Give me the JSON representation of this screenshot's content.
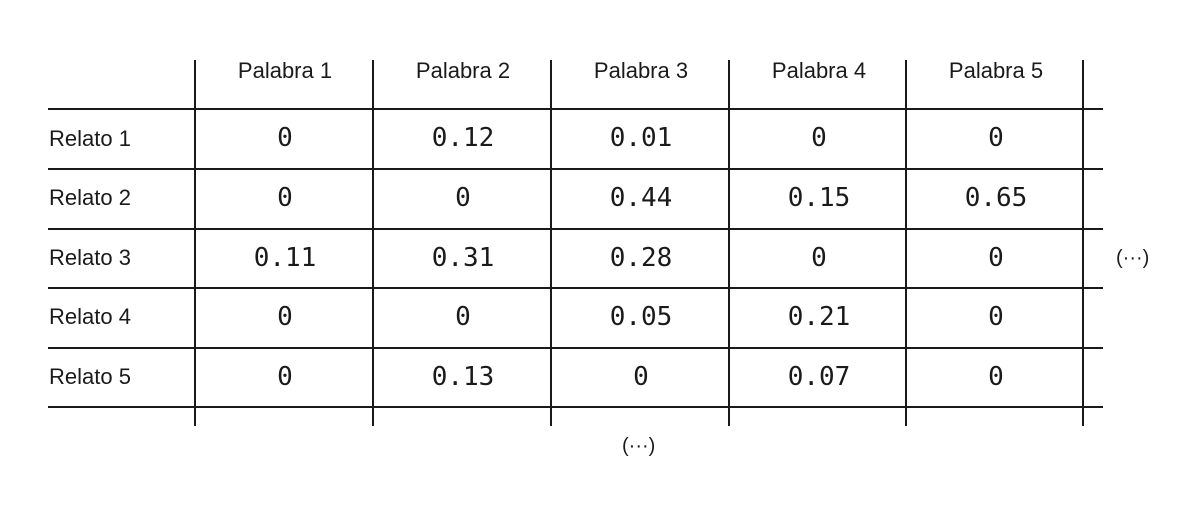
{
  "table": {
    "column_headers": [
      "Palabra 1",
      "Palabra 2",
      "Palabra 3",
      "Palabra 4",
      "Palabra 5"
    ],
    "row_headers": [
      "Relato 1",
      "Relato 2",
      "Relato 3",
      "Relato 4",
      "Relato 5"
    ],
    "cells": [
      [
        "0",
        "0.12",
        "0.01",
        "0",
        "0"
      ],
      [
        "0",
        "0",
        "0.44",
        "0.15",
        "0.65"
      ],
      [
        "0.11",
        "0.31",
        "0.28",
        "0",
        "0"
      ],
      [
        "0",
        "0",
        "0.05",
        "0.21",
        "0"
      ],
      [
        "0",
        "0.13",
        "0",
        "0.07",
        "0"
      ]
    ],
    "right_ellipsis": "(···)",
    "bottom_ellipsis": "(···)"
  },
  "colors": {
    "line": "#1a1a1a",
    "text": "#1a1a1a",
    "background": "#ffffff"
  }
}
